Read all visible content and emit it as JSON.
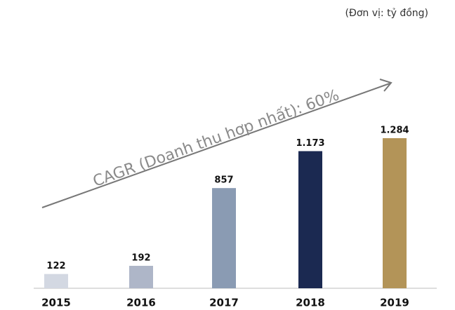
{
  "chart_data": {
    "type": "bar",
    "unit_note": "(Đơn vị: tỷ đồng)",
    "annotation": "CAGR (Doanh thu hợp nhất): 60%",
    "categories": [
      "2015",
      "2016",
      "2017",
      "2018",
      "2019"
    ],
    "values": [
      122,
      192,
      857,
      1173,
      1284
    ],
    "value_labels": [
      "122",
      "192",
      "857",
      "1.173",
      "1.284"
    ],
    "colors": [
      "#d3d8e2",
      "#aeb6c8",
      "#8a9bb3",
      "#1b2951",
      "#b39458"
    ]
  }
}
